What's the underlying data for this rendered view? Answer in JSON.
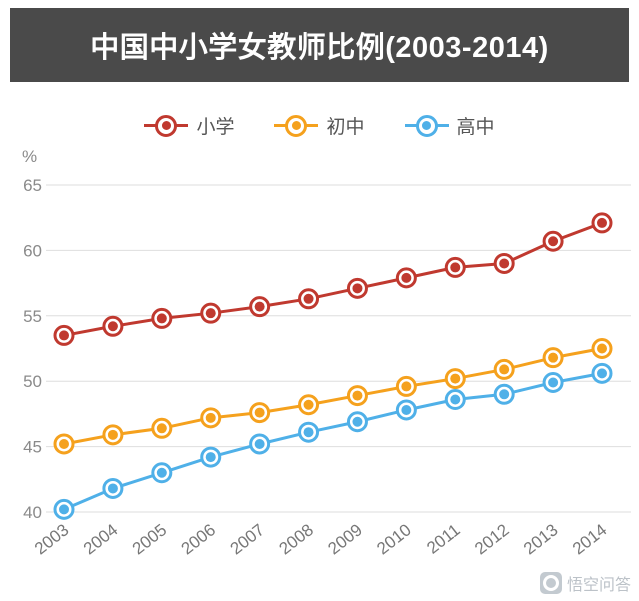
{
  "page": {
    "title": "中国中小学女教师比例(2003-2014)"
  },
  "watermark": {
    "text": "悟空问答"
  },
  "chart_data": {
    "type": "line",
    "title": "中国中小学女教师比例(2003-2014)",
    "x": [
      2003,
      2004,
      2005,
      2006,
      2007,
      2008,
      2009,
      2010,
      2011,
      2012,
      2013,
      2014
    ],
    "xlabel": "",
    "ylabel": "%",
    "ylim": [
      40,
      65
    ],
    "yticks": [
      40,
      45,
      50,
      55,
      60,
      65
    ],
    "grid": true,
    "legend_position": "top",
    "series": [
      {
        "name": "小学",
        "color": "#c0392f",
        "values": [
          53.5,
          54.2,
          54.8,
          55.2,
          55.7,
          56.3,
          57.1,
          57.9,
          58.7,
          59.0,
          60.7,
          62.1
        ]
      },
      {
        "name": "初中",
        "color": "#f5a11d",
        "values": [
          45.2,
          45.9,
          46.4,
          47.2,
          47.6,
          48.2,
          48.9,
          49.6,
          50.2,
          50.9,
          51.8,
          52.5
        ]
      },
      {
        "name": "高中",
        "color": "#4fb0e8",
        "values": [
          40.2,
          41.8,
          43.0,
          44.2,
          45.2,
          46.1,
          46.9,
          47.8,
          48.6,
          49.0,
          49.9,
          50.6
        ]
      }
    ]
  }
}
